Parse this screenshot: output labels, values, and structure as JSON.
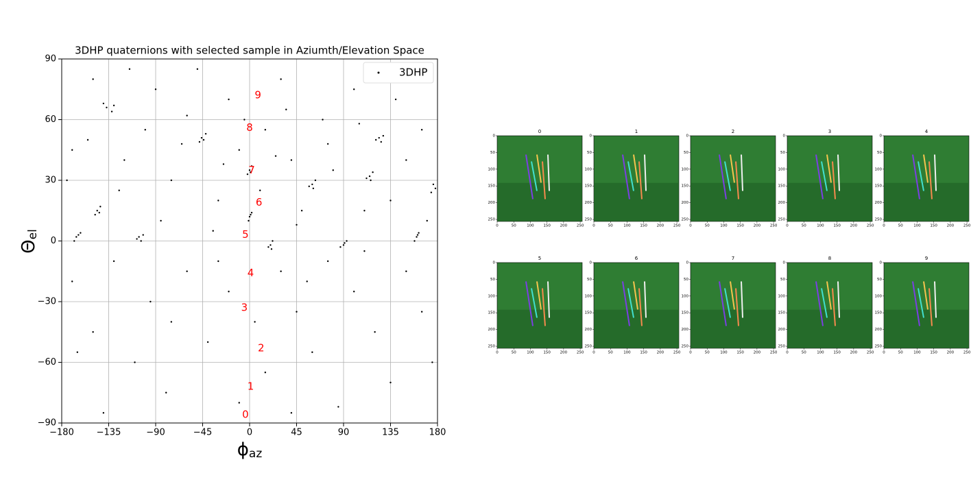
{
  "chart_data": {
    "type": "scatter",
    "title": "3DHP quaternions with selected sample in Aziumth/Elevation Space",
    "xlabel": {
      "symbol": "ϕ",
      "sub": "az"
    },
    "ylabel": {
      "symbol": "Θ",
      "sub": "el"
    },
    "xlim": [
      -180,
      180
    ],
    "ylim": [
      -90,
      90
    ],
    "xticks": [
      {
        "value": -180,
        "label": "−180"
      },
      {
        "value": -135,
        "label": "−135"
      },
      {
        "value": -90,
        "label": "−90"
      },
      {
        "value": -45,
        "label": "−45"
      },
      0,
      45,
      90,
      135,
      180
    ],
    "yticks": [
      {
        "value": -90,
        "label": "−90"
      },
      {
        "value": -60,
        "label": "−60"
      },
      {
        "value": -30,
        "label": "−30"
      },
      0,
      30,
      60,
      90
    ],
    "grid": true,
    "legend": "upper right",
    "series": [
      {
        "name": "3DHP",
        "color": "#000000",
        "x": [
          -137,
          -132,
          -140,
          -130,
          -46,
          -42,
          -48,
          -44,
          124,
          128,
          121,
          126,
          -146,
          -143,
          -148,
          -144,
          -166,
          -162,
          -168,
          -164,
          -106,
          -102,
          -108,
          -104,
          0,
          2,
          -2,
          1,
          0,
          2,
          -1,
          1,
          20,
          22,
          18,
          21,
          90,
          93,
          87,
          91,
          160,
          162,
          158,
          161,
          60,
          63,
          57,
          61,
          115,
          118,
          112,
          116,
          178,
          176,
          174,
          -170,
          -150,
          -120,
          -100,
          -90,
          -75,
          -60,
          -30,
          -20,
          -10,
          15,
          30,
          40,
          50,
          70,
          80,
          100,
          110,
          140,
          150,
          165,
          -175,
          -155,
          -125,
          -85,
          -65,
          -50,
          -25,
          -5,
          10,
          35,
          45,
          75,
          105,
          135,
          145,
          170,
          -115,
          -35,
          25,
          -170,
          -150,
          -130,
          -110,
          -95,
          -80,
          -60,
          -40,
          -20,
          -10,
          5,
          15,
          30,
          45,
          60,
          75,
          85,
          100,
          120,
          135,
          150,
          165,
          175,
          -140,
          -75,
          -30,
          40,
          110,
          -165,
          55
        ],
        "y": [
          66,
          64,
          68,
          67,
          51,
          53,
          49,
          50,
          51,
          52,
          50,
          49,
          15,
          17,
          13,
          14,
          2,
          4,
          0,
          3,
          2,
          3,
          1,
          0,
          35,
          37,
          33,
          34,
          12,
          14,
          10,
          13,
          -2,
          0,
          -3,
          -4,
          -2,
          0,
          -3,
          -1,
          2,
          4,
          0,
          3,
          28,
          30,
          27,
          26,
          32,
          34,
          31,
          30,
          26,
          28,
          24,
          45,
          80,
          40,
          55,
          75,
          30,
          62,
          20,
          70,
          45,
          55,
          80,
          40,
          15,
          60,
          35,
          75,
          15,
          70,
          40,
          55,
          30,
          50,
          25,
          10,
          48,
          85,
          38,
          60,
          25,
          65,
          8,
          48,
          58,
          20,
          85,
          10,
          85,
          5,
          42,
          -20,
          -45,
          -10,
          -60,
          -30,
          -75,
          -15,
          -50,
          -25,
          -80,
          -40,
          -65,
          -15,
          -35,
          -55,
          -10,
          -82,
          -25,
          -45,
          -70,
          -15,
          -35,
          -60,
          -85,
          -40,
          -10,
          -85,
          -5,
          -55,
          -20
        ]
      }
    ],
    "annotations": {
      "color": "#ff0000",
      "items": [
        {
          "text": "0",
          "x": -4,
          "y": -86
        },
        {
          "text": "1",
          "x": 1,
          "y": -72
        },
        {
          "text": "2",
          "x": 11,
          "y": -53
        },
        {
          "text": "3",
          "x": -5,
          "y": -33
        },
        {
          "text": "4",
          "x": 1,
          "y": -16
        },
        {
          "text": "5",
          "x": -4,
          "y": 3
        },
        {
          "text": "6",
          "x": 9,
          "y": 19
        },
        {
          "text": "7",
          "x": 2,
          "y": 35
        },
        {
          "text": "8",
          "x": 0,
          "y": 56
        },
        {
          "text": "9",
          "x": 8,
          "y": 72
        }
      ]
    }
  },
  "thumbnails": {
    "titles": [
      "0",
      "1",
      "2",
      "3",
      "4",
      "5",
      "6",
      "7",
      "8",
      "9"
    ],
    "xticks": [
      0,
      50,
      100,
      150,
      200,
      250
    ],
    "yticks": [
      0,
      50,
      100,
      150,
      200,
      250
    ],
    "xlim": [
      0,
      256
    ],
    "ylim": [
      0,
      256
    ]
  }
}
